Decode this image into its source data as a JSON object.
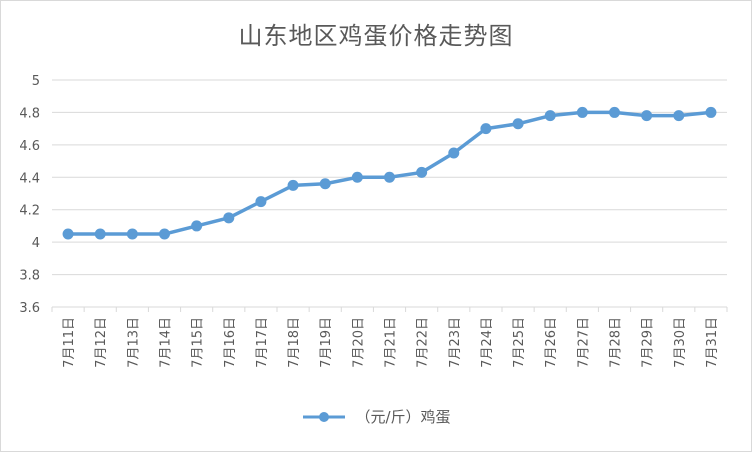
{
  "chart_data": {
    "type": "line",
    "title": "山东地区鸡蛋价格走势图",
    "categories": [
      "7月11日",
      "7月12日",
      "7月13日",
      "7月14日",
      "7月15日",
      "7月16日",
      "7月17日",
      "7月18日",
      "7月19日",
      "7月20日",
      "7月21日",
      "7月22日",
      "7月23日",
      "7月24日",
      "7月25日",
      "7月26日",
      "7月27日",
      "7月28日",
      "7月29日",
      "7月30日",
      "7月31日"
    ],
    "series": [
      {
        "name": "（元/斤）鸡蛋",
        "color": "#5b9bd5",
        "values": [
          4.05,
          4.05,
          4.05,
          4.05,
          4.1,
          4.15,
          4.25,
          4.35,
          4.36,
          4.4,
          4.4,
          4.43,
          4.55,
          4.7,
          4.73,
          4.78,
          4.8,
          4.8,
          4.78,
          4.78,
          4.8
        ]
      }
    ],
    "yticks": [
      "3.6",
      "3.8",
      "4",
      "4.2",
      "4.4",
      "4.6",
      "4.8",
      "5"
    ],
    "ylim": [
      3.6,
      5
    ],
    "grid": true,
    "legend_position": "bottom"
  }
}
